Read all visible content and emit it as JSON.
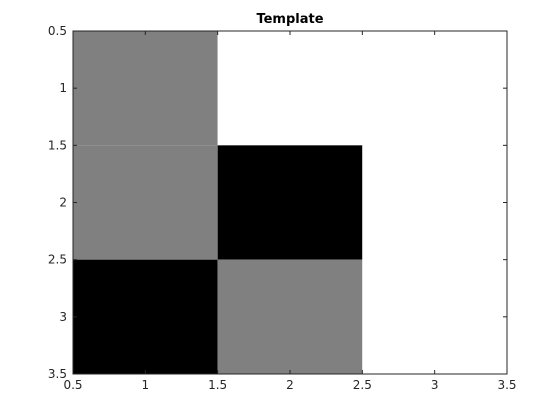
{
  "chart_data": {
    "type": "heatmap",
    "title": "Template",
    "xlabel": "",
    "ylabel": "",
    "xlim": [
      0.5,
      3.5
    ],
    "ylim": [
      0.5,
      3.5
    ],
    "y_reversed": true,
    "x_ticks": [
      "0.5",
      "1",
      "1.5",
      "2",
      "2.5",
      "3",
      "3.5"
    ],
    "y_ticks": [
      "0.5",
      "1",
      "1.5",
      "2",
      "2.5",
      "3",
      "3.5"
    ],
    "grid": false,
    "colormap": "gray",
    "cells": [
      [
        0.5,
        1.0,
        1.0
      ],
      [
        0.5,
        0.0,
        1.0
      ],
      [
        0.0,
        0.5,
        1.0
      ]
    ]
  }
}
